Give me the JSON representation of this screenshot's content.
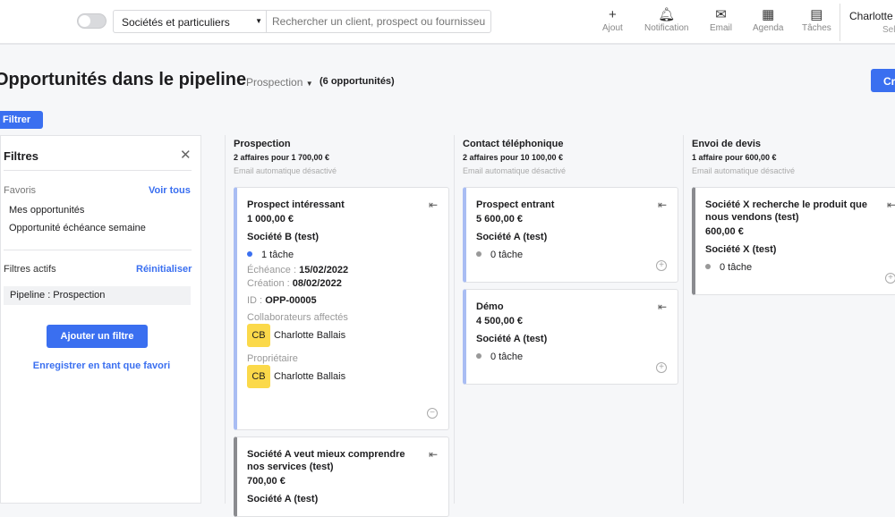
{
  "topbar": {
    "scope": "Sociétés et particuliers",
    "search_placeholder": "Rechercher un client, prospect ou fournisseur",
    "actions": [
      {
        "label": "Ajout",
        "icon": "plus-icon"
      },
      {
        "label": "Notification",
        "icon": "bell-icon"
      },
      {
        "label": "Email",
        "icon": "envelope-icon"
      },
      {
        "label": "Agenda",
        "icon": "calendar-icon"
      },
      {
        "label": "Tâches",
        "icon": "clipboard-icon"
      }
    ],
    "user": "Charlotte",
    "user_sub": "Sel"
  },
  "page": {
    "title": "Opportunités dans le pipeline",
    "pipeline": "Prospection",
    "count": "(6 opportunités)",
    "create_label": "Cr",
    "filter_label": "Filtrer"
  },
  "filters": {
    "title": "Filtres",
    "favorites_label": "Favoris",
    "see_all": "Voir tous",
    "favorites": [
      "Mes opportunités",
      "Opportunité échéance semaine"
    ],
    "active_label": "Filtres actifs",
    "reset": "Réinitialiser",
    "active": "Pipeline : Prospection",
    "add_filter": "Ajouter un filtre",
    "save_favorite": "Enregistrer en tant que favori"
  },
  "columns": [
    {
      "title": "Prospection",
      "summary": "2 affaires pour 1 700,00 €",
      "email": "Email automatique désactivé",
      "cards": [
        {
          "name": "Prospect intéressant",
          "amount": "1 000,00 €",
          "company": "Société B (test)",
          "tasks": "1 tâche",
          "due_label": "Échéance :",
          "due": "15/02/2022",
          "created_label": "Création :",
          "created": "08/02/2022",
          "id_label": "ID :",
          "id": "OPP-00005",
          "collab_label": "Collaborateurs affectés",
          "collab_initials": "CB",
          "collab": "Charlotte Ballais",
          "owner_label": "Propriétaire",
          "owner_initials": "CB",
          "owner": "Charlotte Ballais"
        },
        {
          "name": "Société A veut mieux comprendre nos services (test)",
          "amount": "700,00 €",
          "company": "Société A (test)"
        }
      ]
    },
    {
      "title": "Contact téléphonique",
      "summary": "2 affaires pour 10 100,00 €",
      "email": "Email automatique désactivé",
      "cards": [
        {
          "name": "Prospect entrant",
          "amount": "5 600,00 €",
          "company": "Société A (test)",
          "tasks": "0 tâche"
        },
        {
          "name": "Démo",
          "amount": "4 500,00 €",
          "company": "Société A (test)",
          "tasks": "0 tâche"
        }
      ]
    },
    {
      "title": "Envoi de devis",
      "summary": "1 affaire pour 600,00 €",
      "email": "Email automatique désactivé",
      "cards": [
        {
          "name": "Société X recherche le produit que nous vendons (test)",
          "amount": "600,00 €",
          "company": "Société X (test)",
          "tasks": "0 tâche"
        }
      ]
    }
  ]
}
